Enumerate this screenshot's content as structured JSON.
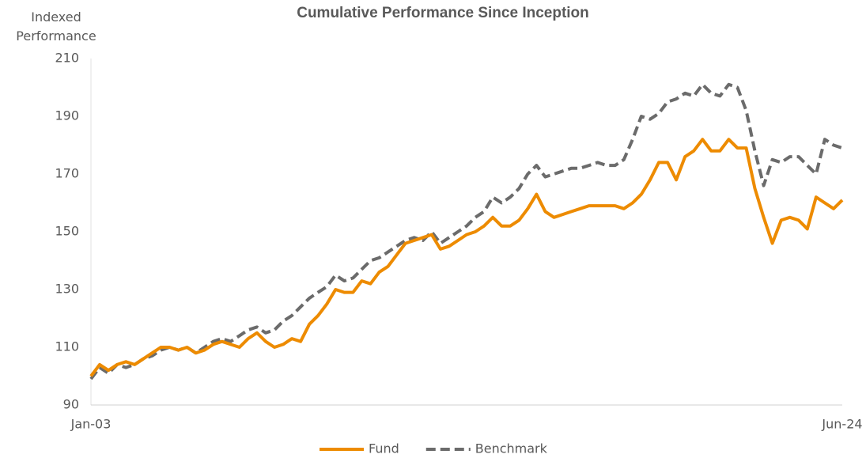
{
  "chart_data": {
    "type": "line",
    "title": "Cumulative Performance Since Inception",
    "ylabel": [
      "Indexed",
      "Performance"
    ],
    "categories": [
      "Jan-03",
      null,
      null,
      null,
      null,
      null,
      null,
      null,
      null,
      null,
      null,
      null,
      null,
      null,
      null,
      null,
      null,
      null,
      null,
      null,
      null,
      null,
      null,
      null,
      null,
      null,
      null,
      null,
      null,
      null,
      null,
      null,
      null,
      null,
      null,
      null,
      null,
      null,
      null,
      null,
      null,
      null,
      null,
      null,
      null,
      null,
      null,
      null,
      null,
      null,
      null,
      null,
      null,
      null,
      null,
      null,
      null,
      null,
      null,
      null,
      null,
      null,
      null,
      null,
      null,
      null,
      null,
      null,
      null,
      null,
      null,
      null,
      null,
      null,
      null,
      null,
      null,
      null,
      null,
      null,
      null,
      null,
      null,
      null,
      null,
      null,
      "Jun-24"
    ],
    "series": [
      {
        "name": "Fund",
        "color": "#ED8B00",
        "dash": false,
        "values": [
          100,
          104,
          102,
          104,
          105,
          104,
          106,
          108,
          110,
          110,
          109,
          110,
          108,
          109,
          111,
          112,
          111,
          110,
          113,
          115,
          112,
          110,
          111,
          113,
          112,
          118,
          121,
          125,
          130,
          129,
          129,
          133,
          132,
          136,
          138,
          142,
          146,
          147,
          148,
          149,
          144,
          145,
          147,
          149,
          150,
          152,
          155,
          152,
          152,
          154,
          158,
          163,
          157,
          155,
          156,
          157,
          158,
          159,
          159,
          159,
          159,
          158,
          160,
          163,
          168,
          174,
          174,
          168,
          176,
          178,
          182,
          178,
          178,
          182,
          179,
          179,
          165,
          155,
          146,
          154,
          155,
          154,
          151,
          162,
          160,
          158,
          161
        ]
      },
      {
        "name": "Benchmark",
        "color": "#6B6B6B",
        "dash": true,
        "values": [
          99,
          103,
          101,
          104,
          103,
          104,
          106,
          107,
          109,
          110,
          109,
          110,
          108,
          110,
          112,
          113,
          112,
          114,
          116,
          117,
          115,
          116,
          119,
          121,
          124,
          127,
          129,
          131,
          135,
          133,
          134,
          137,
          140,
          141,
          143,
          145,
          147,
          148,
          147,
          150,
          146,
          148,
          150,
          152,
          155,
          157,
          162,
          160,
          162,
          165,
          170,
          173,
          169,
          170,
          171,
          172,
          172,
          173,
          174,
          173,
          173,
          175,
          182,
          190,
          189,
          191,
          195,
          196,
          198,
          197,
          201,
          198,
          197,
          201,
          200,
          192,
          178,
          166,
          175,
          174,
          176,
          176,
          173,
          170,
          182,
          180,
          179
        ]
      }
    ],
    "ylim": [
      90,
      210
    ],
    "yticks": [
      90,
      110,
      130,
      150,
      170,
      190,
      210
    ],
    "grid": false
  }
}
